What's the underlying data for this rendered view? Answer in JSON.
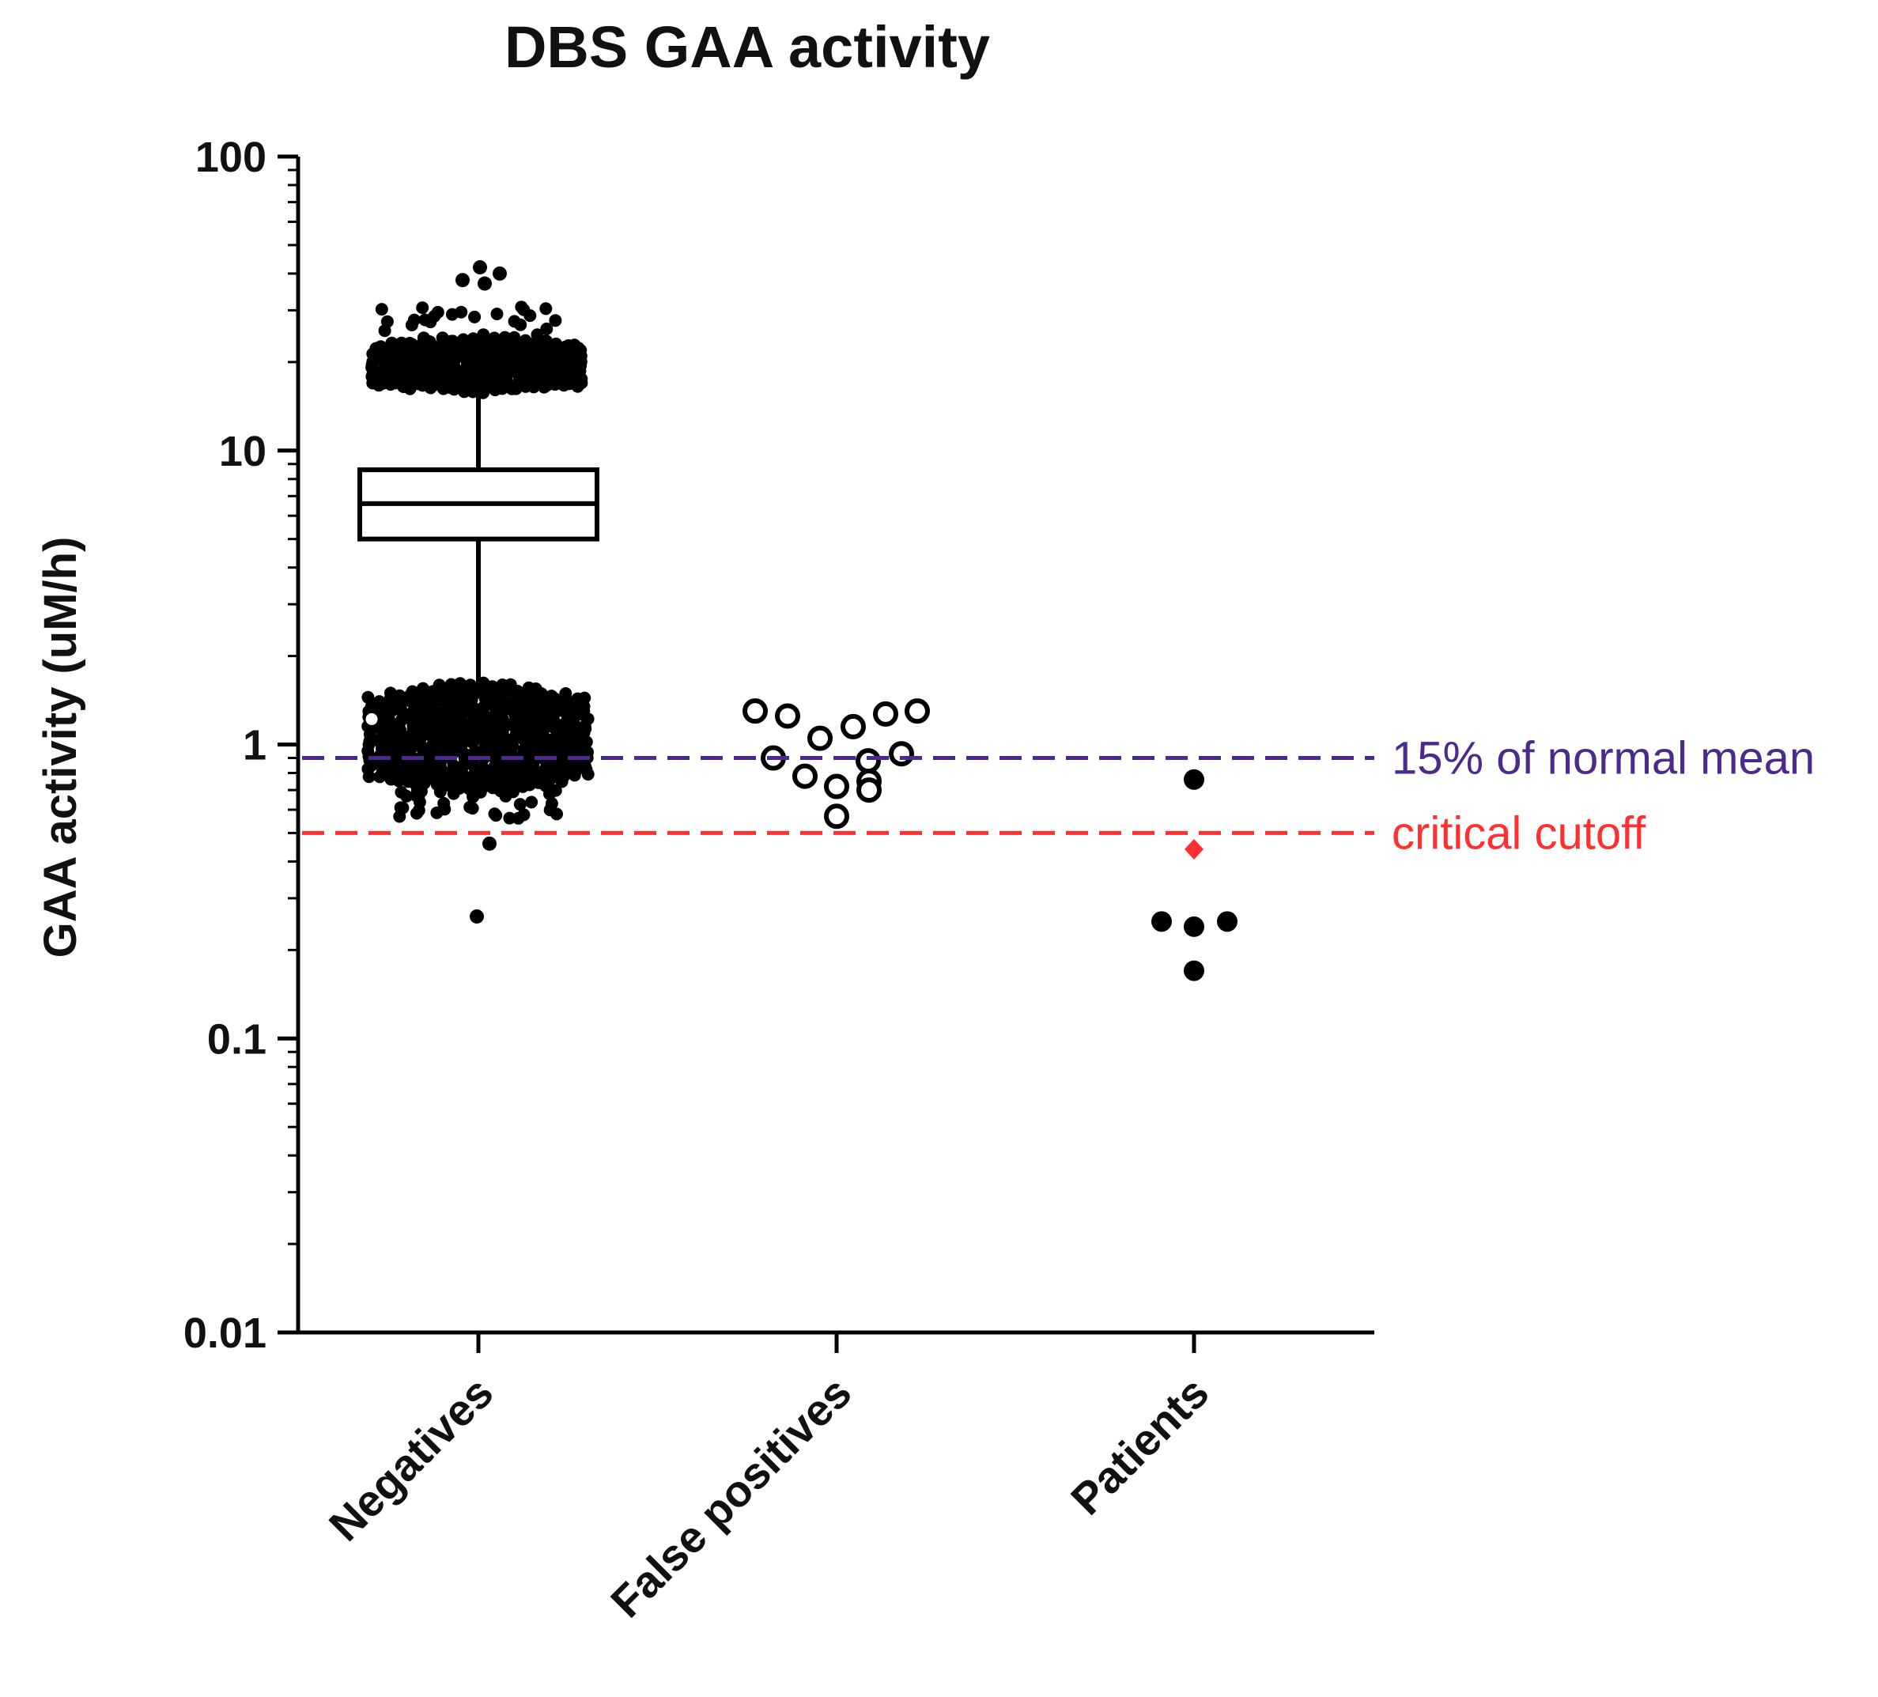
{
  "chart_data": {
    "type": "scatter",
    "title": "DBS GAA activity",
    "ylabel": "GAA activity (uM/h)",
    "xlabel": "",
    "yscale": "log",
    "ylim": [
      0.01,
      100
    ],
    "yticks": [
      "100",
      "10",
      "1",
      "0.1",
      "0.01"
    ],
    "yticks_values": [
      100,
      10,
      1,
      0.1,
      0.01
    ],
    "categories": [
      "Negatives",
      "False positives",
      "Patients"
    ],
    "box": {
      "category": "Negatives",
      "q1": 5.0,
      "median": 6.6,
      "q3": 8.6,
      "whisker_low": 1.6,
      "whisker_high": 16,
      "outliers_high_range": [
        16,
        31
      ],
      "outliers_low_range": [
        0.5,
        1.6
      ],
      "extra_points": [
        42,
        40,
        38,
        37,
        0.46,
        0.26
      ]
    },
    "false_positives": [
      1.3,
      1.25,
      1.05,
      1.15,
      1.27,
      1.3,
      0.9,
      0.78,
      0.72,
      0.75,
      0.88,
      0.93,
      0.7,
      0.57
    ],
    "patients": [
      0.76,
      0.25,
      0.24,
      0.25,
      0.17
    ],
    "patients_highlight": {
      "value": 0.44,
      "color": "#ff3030",
      "marker": "diamond"
    },
    "reference_lines": [
      {
        "label": "15% of normal mean",
        "value": 0.9,
        "color": "#4b2a8c"
      },
      {
        "label": "critical cutoff",
        "value": 0.5,
        "color": "#ff3030"
      }
    ]
  }
}
